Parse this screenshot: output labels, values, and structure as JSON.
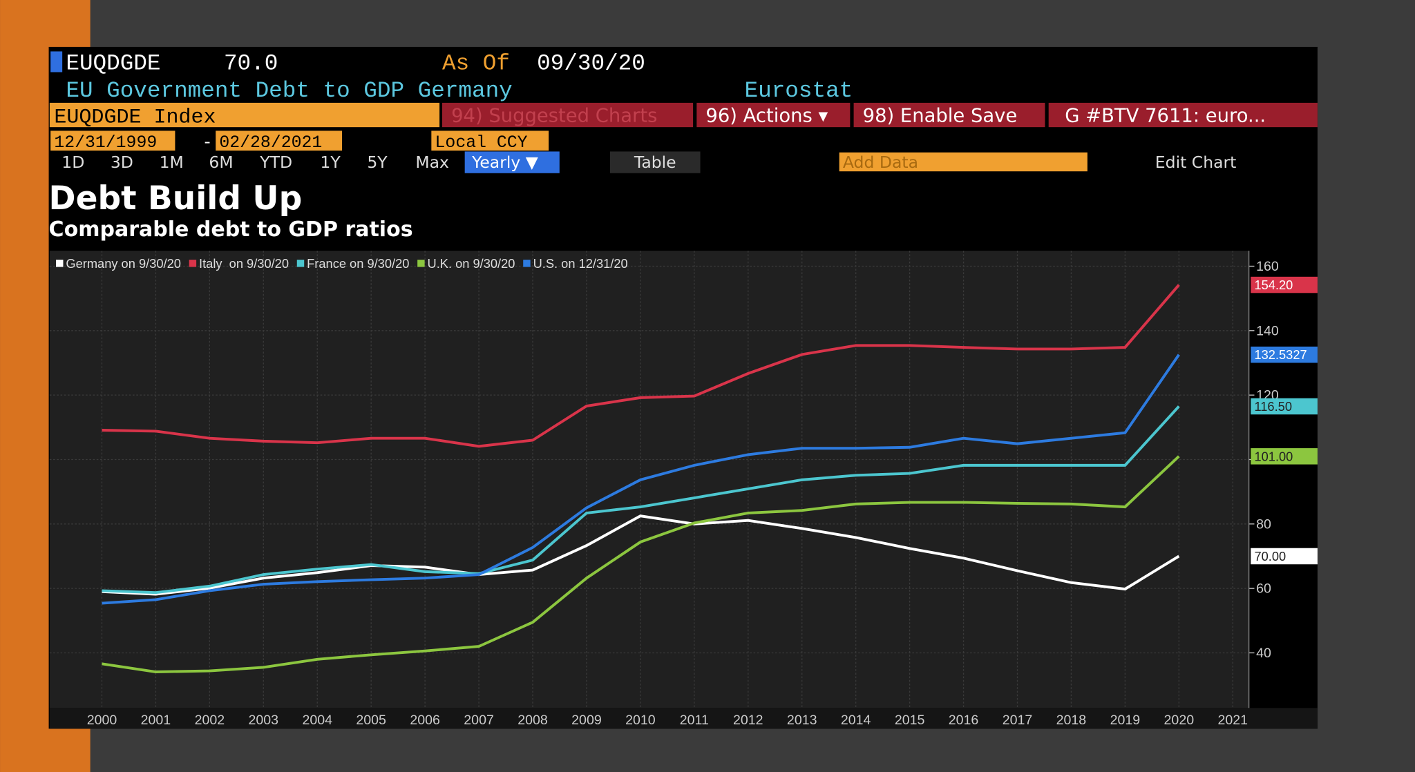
{
  "header": {
    "ticker": "EUQDGDE",
    "last_value": "70.0",
    "as_of_label": "As Of",
    "as_of_date": "09/30/20",
    "description": "EU Government Debt to GDP Germany",
    "source": "Eurostat",
    "security": "EUQDGDE Index",
    "suggested": "94) Suggested Charts",
    "actions": "96) Actions ▾",
    "enable_save": "98) Enable Save",
    "news": "G #BTV 7611: euro...",
    "start_date": "12/31/1999",
    "date_sep": "-",
    "end_date": "02/28/2021",
    "currency": "Local CCY"
  },
  "toolbar": {
    "periods": [
      "1D",
      "3D",
      "1M",
      "6M",
      "YTD",
      "1Y",
      "5Y",
      "Max"
    ],
    "frequency": "Yearly ▼",
    "table": "Table",
    "add_data": "Add Data",
    "edit_chart": "Edit Chart"
  },
  "chart_data": {
    "type": "line",
    "title": "Debt Build Up",
    "subtitle": "Comparable debt to GDP ratios",
    "x": [
      2000,
      2001,
      2002,
      2003,
      2004,
      2005,
      2006,
      2007,
      2008,
      2009,
      2010,
      2011,
      2012,
      2013,
      2014,
      2015,
      2016,
      2017,
      2018,
      2019,
      2020
    ],
    "series": [
      {
        "name": "Germany on 9/30/20",
        "color": "#ffffff",
        "values": [
          59.0,
          58.2,
          60.1,
          63.2,
          64.9,
          67.1,
          66.6,
          64.3,
          65.7,
          73.3,
          82.5,
          80.0,
          81.1,
          78.6,
          75.8,
          72.4,
          69.4,
          65.5,
          61.8,
          59.8,
          70.0
        ],
        "value_labels": [
          null,
          null,
          null,
          null,
          null,
          null,
          null,
          null,
          null,
          null,
          null,
          null,
          null,
          null,
          null,
          null,
          null,
          null,
          null,
          null,
          "70.00"
        ]
      },
      {
        "name": "Italy  on 9/30/20",
        "color": "#d9344a",
        "values": [
          109.1,
          108.8,
          106.6,
          105.7,
          105.2,
          106.6,
          106.6,
          104.1,
          106.0,
          116.6,
          119.2,
          119.7,
          126.7,
          132.6,
          135.4,
          135.4,
          134.8,
          134.3,
          134.3,
          134.8,
          154.2
        ],
        "value_labels": [
          null,
          null,
          null,
          null,
          null,
          null,
          null,
          null,
          null,
          null,
          null,
          null,
          null,
          null,
          null,
          null,
          null,
          null,
          null,
          null,
          "154.20"
        ]
      },
      {
        "name": "France on 9/30/20",
        "color": "#4cc6cf",
        "values": [
          59.3,
          58.7,
          60.7,
          64.3,
          66.0,
          67.4,
          65.2,
          64.6,
          68.8,
          83.4,
          85.3,
          88.1,
          90.9,
          93.7,
          95.1,
          95.7,
          98.2,
          98.2,
          98.2,
          98.2,
          116.5
        ],
        "value_labels": [
          null,
          null,
          null,
          null,
          null,
          null,
          null,
          null,
          null,
          null,
          null,
          null,
          null,
          null,
          null,
          null,
          null,
          null,
          null,
          null,
          "116.50"
        ]
      },
      {
        "name": "U.K. on 9/30/20",
        "color": "#8cc63f",
        "values": [
          36.6,
          34.1,
          34.4,
          35.5,
          38.0,
          39.4,
          40.6,
          42.0,
          49.5,
          63.2,
          74.4,
          80.3,
          83.4,
          84.2,
          86.2,
          86.7,
          86.7,
          86.4,
          86.2,
          85.3,
          101.0
        ],
        "value_labels": [
          null,
          null,
          null,
          null,
          null,
          null,
          null,
          null,
          null,
          null,
          null,
          null,
          null,
          null,
          null,
          null,
          null,
          null,
          null,
          null,
          "101.00"
        ]
      },
      {
        "name": "U.S. on 12/31/20",
        "color": "#2d7be0",
        "values": [
          55.4,
          56.5,
          59.3,
          61.3,
          62.1,
          62.7,
          63.2,
          64.3,
          72.7,
          85.0,
          93.7,
          98.2,
          101.5,
          103.5,
          103.5,
          103.8,
          106.6,
          104.9,
          106.6,
          108.3,
          132.5327
        ],
        "value_labels": [
          null,
          null,
          null,
          null,
          null,
          null,
          null,
          null,
          null,
          null,
          null,
          null,
          null,
          null,
          null,
          null,
          null,
          null,
          null,
          null,
          "132.5327"
        ]
      }
    ],
    "xlim": [
      1999.03,
      2021.3
    ],
    "xticks": [
      2000,
      2001,
      2002,
      2003,
      2004,
      2005,
      2006,
      2007,
      2008,
      2009,
      2010,
      2011,
      2012,
      2013,
      2014,
      2015,
      2016,
      2017,
      2018,
      2019,
      2020,
      2021
    ],
    "ylim": [
      22.9,
      164.8
    ],
    "yticks": [
      40,
      60,
      80,
      100,
      120,
      140,
      160
    ],
    "grid": true,
    "legend": "top-left"
  }
}
